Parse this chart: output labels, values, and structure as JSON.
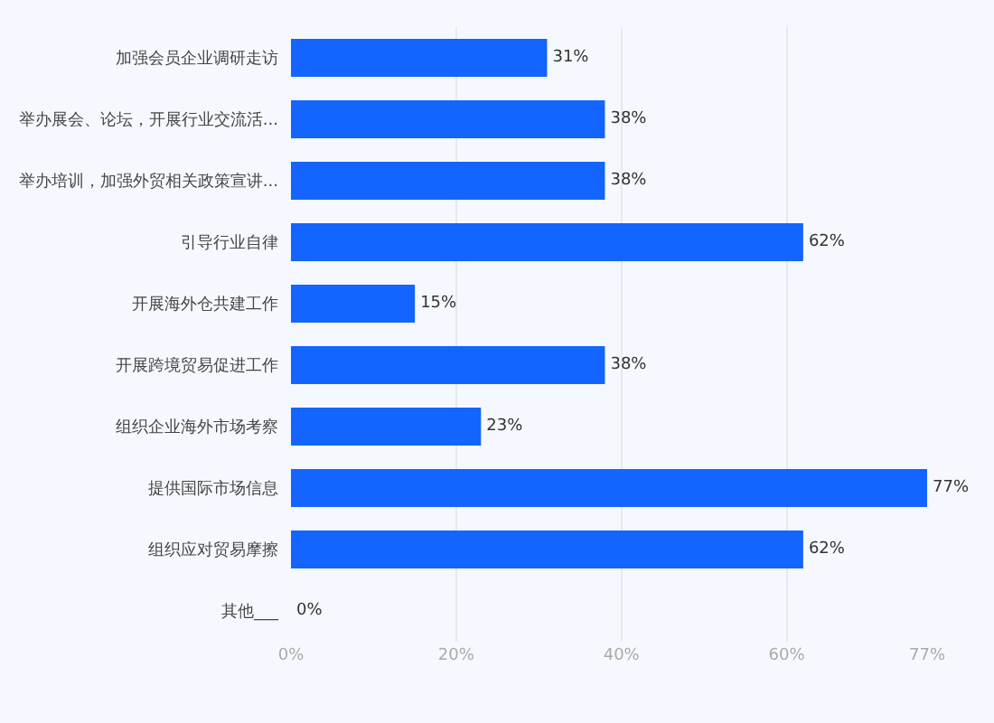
{
  "chart_data": {
    "type": "bar",
    "orientation": "horizontal",
    "categories": [
      "加强会员企业调研走访",
      "举办展会、论坛，开展行业交流活...",
      "举办培训，加强外贸相关政策宣讲...",
      "引导行业自律",
      "开展海外仓共建工作",
      "开展跨境贸易促进工作",
      "组织企业海外市场考察",
      "提供国际市场信息",
      "组织应对贸易摩擦",
      "其他___"
    ],
    "values": [
      31,
      38,
      38,
      62,
      15,
      38,
      23,
      77,
      62,
      0
    ],
    "value_labels": [
      "31%",
      "38%",
      "38%",
      "62%",
      "15%",
      "38%",
      "23%",
      "77%",
      "62%",
      "0%"
    ],
    "color": "#1464ff",
    "xlim": [
      0,
      77
    ],
    "xticks": [
      {
        "value": 0,
        "label": "0%"
      },
      {
        "value": 20,
        "label": "20%"
      },
      {
        "value": 40,
        "label": "40%"
      },
      {
        "value": 60,
        "label": "60%"
      },
      {
        "value": 77,
        "label": "77%"
      }
    ],
    "grid": "x",
    "legend": false
  }
}
